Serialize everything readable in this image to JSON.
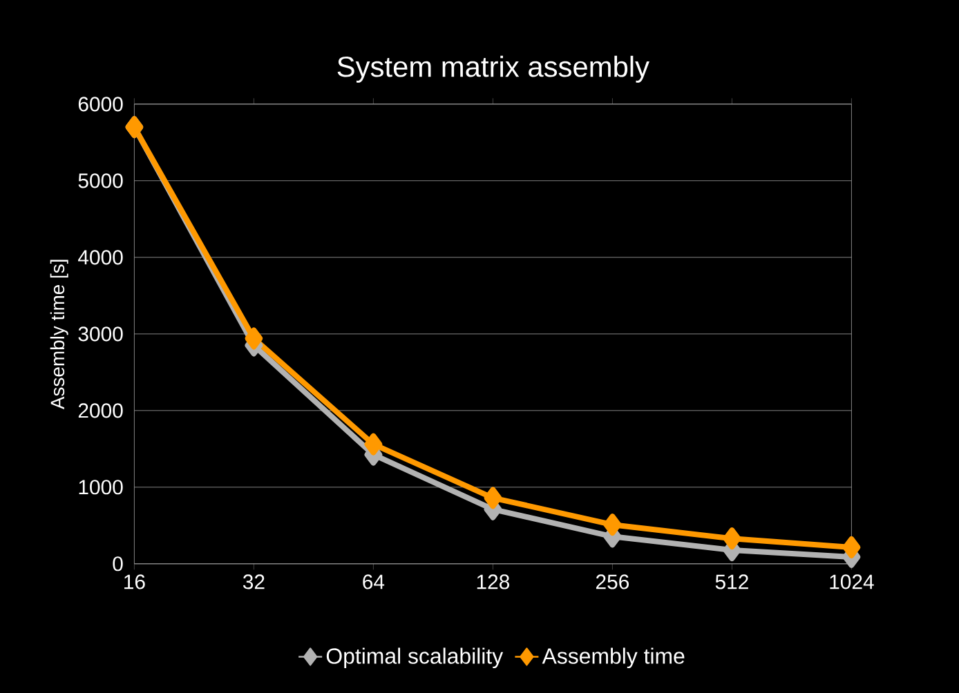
{
  "chart_data": {
    "type": "line",
    "title": "System matrix assembly",
    "ylabel": "Assembly time [s]",
    "categories": [
      "16",
      "32",
      "64",
      "128",
      "256",
      "512",
      "1024"
    ],
    "series": [
      {
        "name": "Optimal scalability",
        "color": "#b2b2b2",
        "values": [
          5700,
          2850,
          1425,
          712,
          356,
          178,
          89
        ]
      },
      {
        "name": "Assembly time",
        "color": "#ff9900",
        "values": [
          5700,
          2940,
          1560,
          860,
          510,
          330,
          215
        ]
      }
    ],
    "ylim": [
      0,
      6000
    ],
    "yticks": [
      0,
      1000,
      2000,
      3000,
      4000,
      5000,
      6000
    ],
    "grid": "y",
    "legend": "bottom",
    "marker": "diamond",
    "line_style": "solid"
  }
}
